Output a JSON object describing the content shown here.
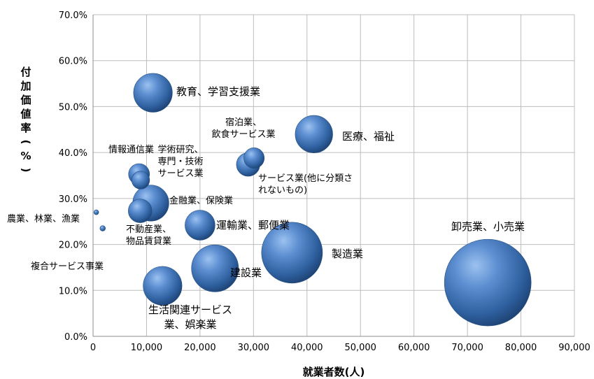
{
  "chart_data": {
    "type": "bubble",
    "title": "",
    "xlabel": "就業者数(人)",
    "ylabel": "付加価値率(%)",
    "xlim": [
      0,
      90000
    ],
    "ylim": [
      0,
      70
    ],
    "x_ticks": [
      "0",
      "10,000",
      "20,000",
      "30,000",
      "40,000",
      "50,000",
      "60,000",
      "70,000",
      "80,000",
      "90,000"
    ],
    "y_ticks": [
      "0.0%",
      "10.0%",
      "20.0%",
      "30.0%",
      "40.0%",
      "50.0%",
      "60.0%",
      "70.0%"
    ],
    "grid": true,
    "legend": "none",
    "bubble_color": "#2e5f9e",
    "points": [
      {
        "label": [
          "卸売業、小売業"
        ],
        "x": 73800,
        "y": 11.7,
        "size": 75000
      },
      {
        "label": [
          "製造業"
        ],
        "x": 37200,
        "y": 18.2,
        "size": 37000
      },
      {
        "label": [
          "建設業"
        ],
        "x": 22800,
        "y": 14.8,
        "size": 22000
      },
      {
        "label": [
          "医療、福祉"
        ],
        "x": 41300,
        "y": 44.0,
        "size": 14000
      },
      {
        "label": [
          "教育、学習支援業"
        ],
        "x": 11200,
        "y": 53.0,
        "size": 15000
      },
      {
        "label": [
          "生活関連サービス",
          "業、娯楽業"
        ],
        "x": 13000,
        "y": 11.0,
        "size": 15000
      },
      {
        "label": [
          "金融業、保険業"
        ],
        "x": 10800,
        "y": 29.0,
        "size": 13000
      },
      {
        "label": [
          "運輸業、郵便業"
        ],
        "x": 20000,
        "y": 24.2,
        "size": 9000
      },
      {
        "label": [
          "不動産業、",
          "物品賃貸業"
        ],
        "x": 8800,
        "y": 27.3,
        "size": 5600
      },
      {
        "label": [
          "宿泊業、",
          "飲食サービス業"
        ],
        "x": 30100,
        "y": 38.8,
        "size": 4200
      },
      {
        "label": [
          "サービス業(他に分類さ",
          "れないもの)"
        ],
        "x": 29000,
        "y": 37.4,
        "size": 5500
      },
      {
        "label": [
          "情報通信業"
        ],
        "x": 8600,
        "y": 35.3,
        "size": 4400
      },
      {
        "label": [
          "学術研究、",
          "専門・技術",
          "サービス業"
        ],
        "x": 8900,
        "y": 34.0,
        "size": 3200
      },
      {
        "label": [
          "農業、林業、漁業"
        ],
        "x": 600,
        "y": 27.0,
        "size": 60
      },
      {
        "label": [
          "複合サービス事業"
        ],
        "x": 1800,
        "y": 23.5,
        "size": 300
      }
    ]
  }
}
